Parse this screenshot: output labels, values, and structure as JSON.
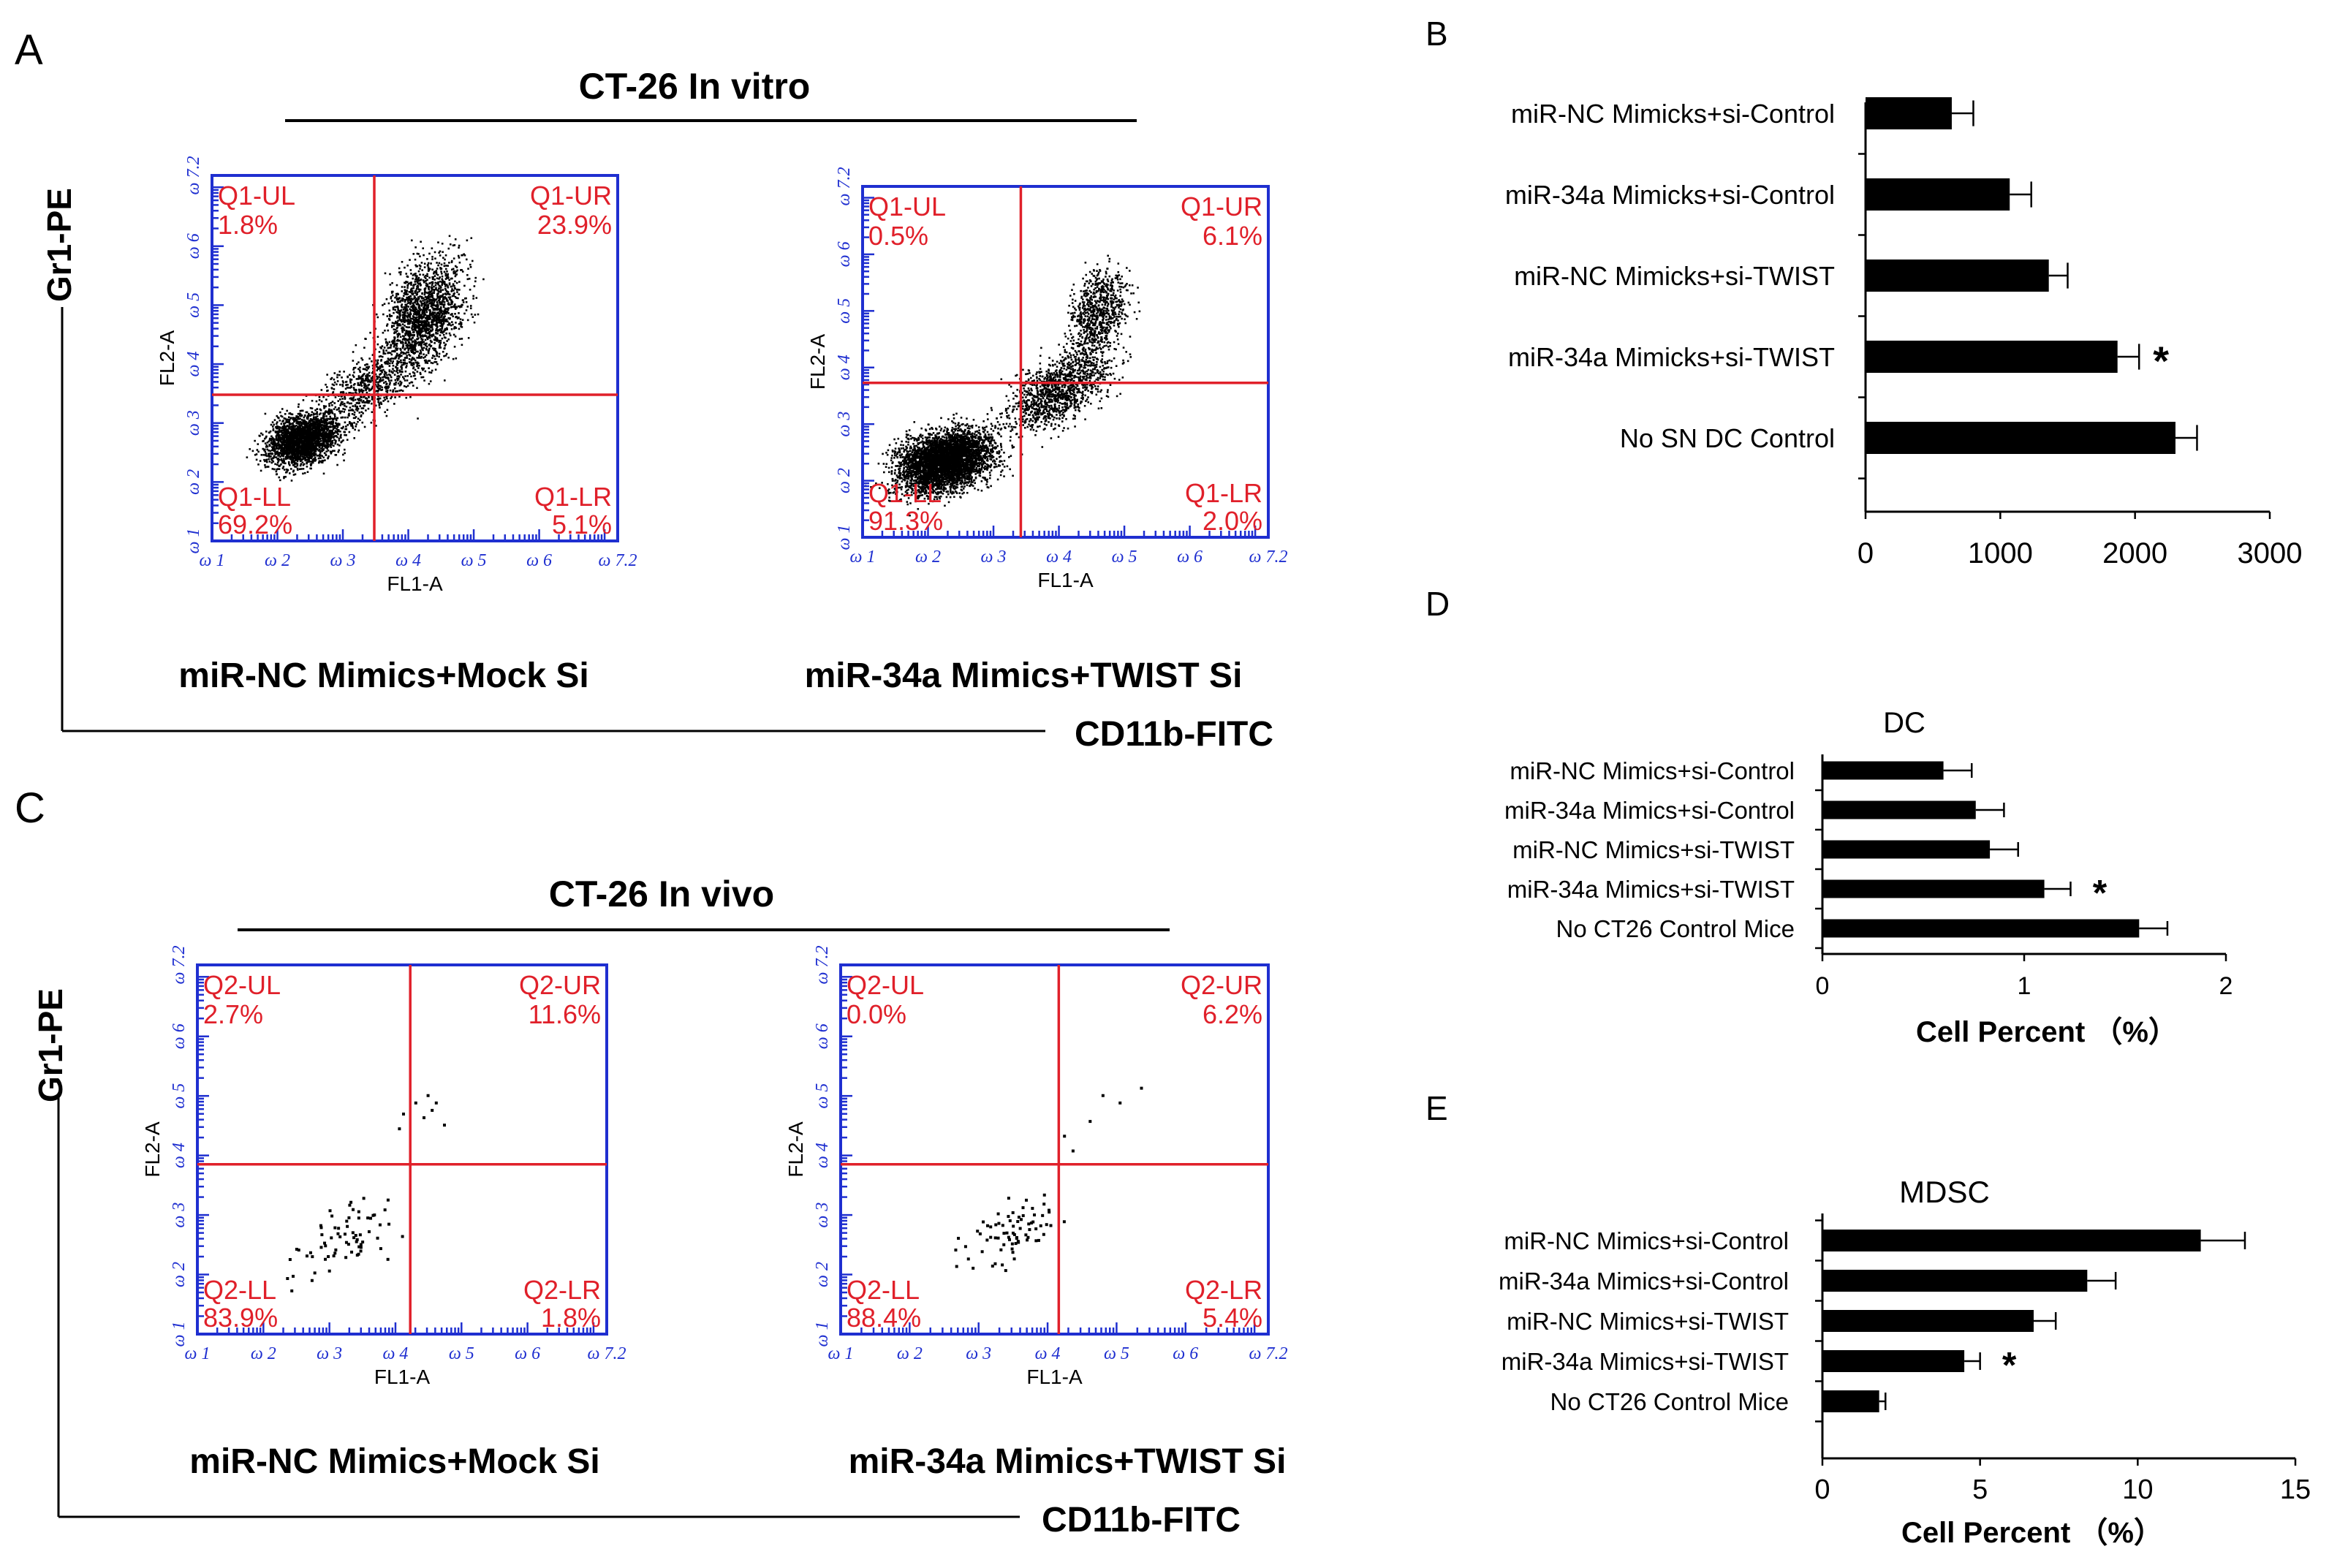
{
  "panel_letters": {
    "a": "A",
    "b": "B",
    "c": "C",
    "d": "D",
    "e": "E"
  },
  "titles": {
    "in_vitro": "CT-26   In vitro",
    "in_vivo": "CT-26   In vivo"
  },
  "axes": {
    "gr1": "Gr1-PE",
    "cd11b": "CD11b-FITC",
    "fl1": "FL1-A",
    "fl2": "FL2-A"
  },
  "decade_ticks": [
    "ω 1",
    "ω 2",
    "ω 3",
    "ω 4",
    "ω 5",
    "ω 6",
    "ω 7.2"
  ],
  "flow_plots": [
    {
      "label": "miR-NC Mimics+Mock Si",
      "quadrants": {
        "ul": "Q1-UL",
        "ur": "Q1-UR",
        "ll": "Q1-LL",
        "lr": "Q1-LR"
      },
      "values": {
        "ul": "1.8%",
        "ur": "23.9%",
        "ll": "69.2%",
        "lr": "5.1%"
      }
    },
    {
      "label": "miR-34a Mimics+TWIST Si",
      "quadrants": {
        "ul": "Q1-UL",
        "ur": "Q1-UR",
        "ll": "Q1-LL",
        "lr": "Q1-LR"
      },
      "values": {
        "ul": "0.5%",
        "ur": "6.1%",
        "ll": "91.3%",
        "lr": "2.0%"
      }
    },
    {
      "label": "miR-NC Mimics+Mock Si",
      "quadrants": {
        "ul": "Q2-UL",
        "ur": "Q2-UR",
        "ll": "Q2-LL",
        "lr": "Q2-LR"
      },
      "values": {
        "ul": "2.7%",
        "ur": "11.6%",
        "ll": "83.9%",
        "lr": "1.8%"
      }
    },
    {
      "label": "miR-34a Mimics+TWIST Si",
      "quadrants": {
        "ul": "Q2-UL",
        "ur": "Q2-UR",
        "ll": "Q2-LL",
        "lr": "Q2-LR"
      },
      "values": {
        "ul": "0.0%",
        "ur": "6.2%",
        "ll": "88.4%",
        "lr": "5.4%"
      }
    }
  ],
  "chart_data": [
    {
      "id": "B",
      "type": "bar",
      "orientation": "horizontal",
      "title": "",
      "xlabel": "",
      "xlim": [
        0,
        3000
      ],
      "ticks": [
        0,
        1000,
        2000,
        3000
      ],
      "categories": [
        "miR-NC Mimicks+si-Control",
        "miR-34a Mimicks+si-Control",
        "miR-NC Mimicks+si-TWIST",
        "miR-34a Mimicks+si-TWIST",
        "No  SN DC Control"
      ],
      "values": [
        640,
        1070,
        1360,
        1870,
        2300
      ],
      "errors": [
        160,
        160,
        140,
        160,
        160
      ],
      "significance": [
        "",
        "",
        "",
        "*",
        ""
      ]
    },
    {
      "id": "D",
      "type": "bar",
      "orientation": "horizontal",
      "title": "DC",
      "xlabel": "Cell Percent （%）",
      "xlim": [
        0,
        2
      ],
      "ticks": [
        0,
        1,
        2
      ],
      "categories": [
        "miR-NC Mimics+si-Control",
        "miR-34a Mimics+si-Control",
        "miR-NC Mimics+si-TWIST",
        "miR-34a Mimics+si-TWIST",
        "No CT26 Control Mice"
      ],
      "values": [
        0.6,
        0.76,
        0.83,
        1.1,
        1.57
      ],
      "errors": [
        0.14,
        0.14,
        0.14,
        0.13,
        0.14
      ],
      "significance": [
        "",
        "",
        "",
        "*",
        ""
      ]
    },
    {
      "id": "E",
      "type": "bar",
      "orientation": "horizontal",
      "title": "MDSC",
      "xlabel": "Cell Percent （%）",
      "xlim": [
        0,
        15
      ],
      "ticks": [
        0,
        5,
        10,
        15
      ],
      "categories": [
        "miR-NC Mimics+si-Control",
        "miR-34a Mimics+si-Control",
        "miR-NC Mimics+si-TWIST",
        "miR-34a Mimics+si-TWIST",
        "No CT26 Control Mice"
      ],
      "values": [
        12.0,
        8.4,
        6.7,
        4.5,
        1.8
      ],
      "errors": [
        1.4,
        0.9,
        0.7,
        0.5,
        0.2
      ],
      "significance": [
        "",
        "",
        "",
        "*",
        ""
      ]
    }
  ]
}
